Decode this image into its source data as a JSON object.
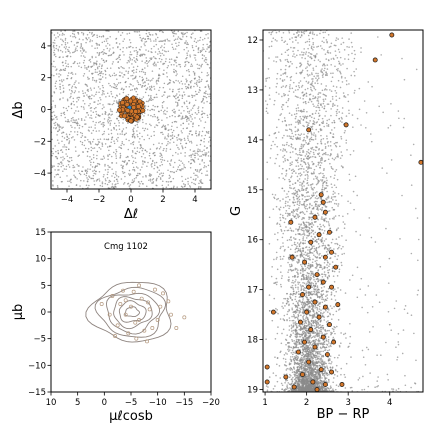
{
  "colors": {
    "field_star": "#8a8a8a",
    "member_fill": "#d2762a",
    "member_edge": "#1a1a1a",
    "member_core": "#2f86c8",
    "pm_contour": "#8f8580",
    "pm_point": "#b59a80",
    "axes": "#000000",
    "background": "#ffffff"
  },
  "chart_data": [
    {
      "id": "sky",
      "type": "scatter",
      "xlabel": "Δℓ",
      "ylabel": "Δb",
      "xlim": [
        -5,
        5
      ],
      "ylim": [
        -5,
        5
      ],
      "xticks": [
        "−4",
        "−2",
        "0",
        "2",
        "4"
      ],
      "xtick_values": [
        -4,
        -2,
        0,
        2,
        4
      ],
      "yticks": [
        "−4",
        "−2",
        "0",
        "2",
        "4"
      ],
      "ytick_values": [
        -4,
        -2,
        0,
        2,
        4
      ],
      "field_density": "uniform",
      "cluster_center": [
        0,
        0
      ],
      "cluster_radius": 0.75,
      "series": [
        {
          "role": "field",
          "values": [
            [
              -4.1,
              4.2
            ],
            [
              1.3,
              -3.6
            ],
            [
              3.8,
              0.9
            ],
            [
              -2.7,
              -1.9
            ],
            [
              0.4,
              3.1
            ],
            [
              -0.9,
              -4.4
            ],
            [
              4.6,
              -2.3
            ],
            [
              -3.5,
              1.7
            ]
          ]
        },
        {
          "role": "members",
          "values": [
            [
              0.1,
              0.3
            ],
            [
              -0.3,
              0.5
            ],
            [
              0.5,
              -0.2
            ],
            [
              -0.6,
              -0.4
            ],
            [
              0.2,
              -0.6
            ],
            [
              0.7,
              0.4
            ]
          ]
        }
      ]
    },
    {
      "id": "pm",
      "type": "scatter",
      "annotation": "Cmg 1102",
      "xlabel": "μℓcosb",
      "ylabel": "μb",
      "xlim": [
        10,
        -20
      ],
      "ylim": [
        -15,
        15
      ],
      "xticks": [
        "10",
        "5",
        "0",
        "−5",
        "−10",
        "−15",
        "−20"
      ],
      "xtick_values": [
        10,
        5,
        0,
        -5,
        -10,
        -15,
        -20
      ],
      "yticks": [
        "−15",
        "−10",
        "−5",
        "0",
        "5",
        "10",
        "15"
      ],
      "ytick_values": [
        -15,
        -10,
        -5,
        0,
        5,
        10,
        15
      ],
      "contour_center": [
        -5.2,
        0.0
      ],
      "contours": [
        {
          "rx": 1.3,
          "ry": 0.9
        },
        {
          "rx": 2.5,
          "ry": 1.9
        },
        {
          "rx": 3.6,
          "ry": 2.8
        },
        {
          "rx": 4.8,
          "ry": 3.7
        },
        {
          "rx": 6.2,
          "ry": 4.6
        },
        {
          "rx": 7.6,
          "ry": 5.6
        }
      ],
      "points": [
        [
          -1.5,
          3.0
        ],
        [
          -3.0,
          1.5
        ],
        [
          -4.0,
          -0.5
        ],
        [
          -5.0,
          1.0
        ],
        [
          -6.5,
          -1.5
        ],
        [
          -7.0,
          2.5
        ],
        [
          -8.5,
          0.5
        ],
        [
          -9.0,
          -3.0
        ],
        [
          -10.5,
          1.0
        ],
        [
          -11.0,
          3.5
        ],
        [
          -12.5,
          -0.5
        ],
        [
          -2.5,
          -2.5
        ],
        [
          -4.5,
          -4.0
        ],
        [
          -6.0,
          -5.0
        ],
        [
          -8.0,
          -5.5
        ],
        [
          -1.0,
          -0.5
        ],
        [
          0.5,
          1.5
        ],
        [
          -3.5,
          4.0
        ],
        [
          -5.5,
          3.8
        ],
        [
          -9.5,
          4.2
        ],
        [
          -12.0,
          2.0
        ],
        [
          -7.5,
          -3.5
        ],
        [
          -15.0,
          -1.0
        ],
        [
          -13.5,
          -3.0
        ],
        [
          -2.0,
          -4.5
        ],
        [
          -6.5,
          5.0
        ],
        [
          -10.0,
          -1.5
        ],
        [
          -4.0,
          2.2
        ],
        [
          -5.8,
          -2.0
        ],
        [
          -8.2,
          1.8
        ]
      ]
    },
    {
      "id": "cmd",
      "type": "scatter",
      "xlabel": "BP − RP",
      "ylabel": "G",
      "xlim": [
        0.95,
        4.8
      ],
      "ylim": [
        19.05,
        11.8
      ],
      "xticks": [
        "1",
        "2",
        "3",
        "4"
      ],
      "xtick_values": [
        1,
        2,
        3,
        4
      ],
      "yticks": [
        "12",
        "13",
        "14",
        "15",
        "16",
        "17",
        "18",
        "19"
      ],
      "ytick_values": [
        12,
        13,
        14,
        15,
        16,
        17,
        18,
        19
      ],
      "members": [
        [
          4.05,
          11.9
        ],
        [
          3.65,
          12.4
        ],
        [
          2.05,
          13.8
        ],
        [
          2.95,
          13.7
        ],
        [
          4.75,
          14.45
        ],
        [
          2.35,
          15.1
        ],
        [
          2.4,
          15.25
        ],
        [
          2.45,
          15.45
        ],
        [
          1.62,
          15.65
        ],
        [
          2.2,
          15.55
        ],
        [
          2.3,
          15.9
        ],
        [
          2.1,
          16.05
        ],
        [
          2.55,
          15.85
        ],
        [
          2.6,
          16.25
        ],
        [
          2.45,
          16.35
        ],
        [
          1.65,
          16.35
        ],
        [
          1.95,
          16.45
        ],
        [
          2.25,
          16.7
        ],
        [
          2.7,
          16.55
        ],
        [
          2.4,
          16.85
        ],
        [
          2.05,
          16.95
        ],
        [
          2.6,
          16.95
        ],
        [
          1.9,
          17.1
        ],
        [
          2.2,
          17.25
        ],
        [
          2.45,
          17.35
        ],
        [
          1.2,
          17.45
        ],
        [
          2.75,
          17.3
        ],
        [
          2.0,
          17.45
        ],
        [
          2.3,
          17.55
        ],
        [
          1.85,
          17.65
        ],
        [
          2.55,
          17.7
        ],
        [
          2.1,
          17.8
        ],
        [
          2.4,
          17.95
        ],
        [
          1.95,
          18.05
        ],
        [
          2.65,
          18.05
        ],
        [
          2.2,
          18.15
        ],
        [
          1.8,
          18.25
        ],
        [
          2.5,
          18.3
        ],
        [
          2.05,
          18.45
        ],
        [
          2.35,
          18.6
        ],
        [
          1.9,
          18.7
        ],
        [
          2.6,
          18.65
        ],
        [
          1.05,
          18.55
        ],
        [
          2.15,
          18.85
        ],
        [
          2.45,
          18.9
        ],
        [
          1.7,
          18.95
        ],
        [
          2.85,
          18.9
        ],
        [
          1.05,
          18.85
        ],
        [
          2.25,
          19.0
        ],
        [
          1.5,
          18.75
        ]
      ]
    }
  ]
}
